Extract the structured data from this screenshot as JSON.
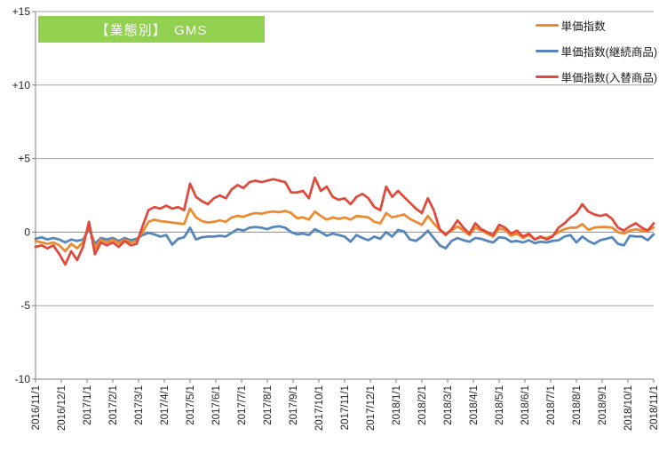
{
  "title": {
    "text": "【業態別】　GMS",
    "bg_color": "#92D050",
    "text_color": "#FFFFFF"
  },
  "colors": {
    "gridline": "#A6A6A6",
    "zero_line": "#8C8C8C",
    "axis": "#808080",
    "tick_text": "#262626"
  },
  "chart_data": {
    "type": "line",
    "title": "【業態別】　GMS",
    "x_unit": "weekly observations from 2016/11/1 to 2018/11/1",
    "legend_position": "top-right",
    "grid": true,
    "ylim": [
      -10,
      15
    ],
    "y_axis": {
      "min": -10,
      "max": 15,
      "tick_step": 5,
      "tick_labels": [
        "+15",
        "+10",
        "+5",
        "0",
        "-5",
        "-10"
      ]
    },
    "x_axis": {
      "tick_labels": [
        "2016/11/1",
        "2016/12/1",
        "2017/1/1",
        "2017/2/1",
        "2017/3/1",
        "2017/4/1",
        "2017/5/1",
        "2017/6/1",
        "2017/7/1",
        "2017/8/1",
        "2017/9/1",
        "2017/10/1",
        "2017/11/1",
        "2017/12/1",
        "2018/1/1",
        "2018/2/1",
        "2018/3/1",
        "2018/4/1",
        "2018/5/1",
        "2018/6/1",
        "2018/7/1",
        "2018/8/1",
        "2018/9/1",
        "2018/10/1",
        "2018/11/1"
      ]
    },
    "series": [
      {
        "name": "単価指数",
        "color": "#ED8A30",
        "values": [
          -0.6,
          -0.7,
          -0.8,
          -0.7,
          -0.9,
          -1.3,
          -0.8,
          -1.1,
          -0.7,
          0.5,
          -1.1,
          -0.5,
          -0.7,
          -0.5,
          -0.75,
          -0.5,
          -0.7,
          -0.6,
          0.0,
          0.7,
          0.85,
          0.75,
          0.7,
          0.65,
          0.6,
          0.55,
          1.6,
          1.0,
          0.75,
          0.65,
          0.7,
          0.8,
          0.7,
          1.0,
          1.1,
          1.05,
          1.2,
          1.3,
          1.25,
          1.35,
          1.4,
          1.35,
          1.45,
          1.3,
          0.95,
          1.0,
          0.85,
          1.4,
          1.1,
          0.85,
          1.0,
          0.9,
          1.0,
          0.85,
          1.1,
          1.05,
          1.0,
          0.7,
          0.6,
          1.3,
          1.0,
          1.1,
          1.2,
          0.9,
          0.7,
          0.5,
          1.1,
          0.6,
          0.15,
          -0.1,
          0.1,
          0.4,
          0.1,
          -0.2,
          0.3,
          0.1,
          -0.1,
          -0.3,
          0.25,
          0.15,
          -0.25,
          -0.1,
          -0.4,
          -0.2,
          -0.5,
          -0.35,
          -0.4,
          -0.25,
          0.0,
          0.2,
          0.3,
          0.3,
          0.55,
          0.15,
          0.3,
          0.35,
          0.35,
          0.3,
          0.0,
          -0.1,
          0.1,
          0.2,
          0.1,
          0.1,
          0.3
        ]
      },
      {
        "name": "単価指数(継続商品)",
        "color": "#5585BD",
        "values": [
          -0.45,
          -0.35,
          -0.5,
          -0.4,
          -0.5,
          -0.7,
          -0.5,
          -0.6,
          -0.5,
          0.25,
          -0.8,
          -0.4,
          -0.5,
          -0.4,
          -0.6,
          -0.4,
          -0.55,
          -0.45,
          -0.2,
          -0.05,
          -0.15,
          -0.3,
          -0.2,
          -0.85,
          -0.45,
          -0.35,
          0.3,
          -0.5,
          -0.35,
          -0.3,
          -0.3,
          -0.25,
          -0.3,
          -0.05,
          0.2,
          0.1,
          0.3,
          0.35,
          0.3,
          0.2,
          0.35,
          0.4,
          0.3,
          0.0,
          -0.15,
          -0.1,
          -0.2,
          0.2,
          0.0,
          -0.25,
          -0.1,
          -0.2,
          -0.3,
          -0.65,
          -0.2,
          -0.4,
          -0.55,
          -0.3,
          -0.45,
          0.0,
          -0.3,
          0.15,
          0.05,
          -0.5,
          -0.6,
          -0.3,
          0.1,
          -0.4,
          -0.9,
          -1.1,
          -0.6,
          -0.4,
          -0.55,
          -0.65,
          -0.4,
          -0.45,
          -0.6,
          -0.7,
          -0.35,
          -0.4,
          -0.65,
          -0.6,
          -0.7,
          -0.55,
          -0.75,
          -0.65,
          -0.7,
          -0.6,
          -0.55,
          -0.3,
          -0.2,
          -0.7,
          -0.3,
          -0.6,
          -0.8,
          -0.55,
          -0.45,
          -0.35,
          -0.8,
          -0.9,
          -0.25,
          -0.3,
          -0.3,
          -0.55,
          -0.15
        ]
      },
      {
        "name": "単価指数(入替商品)",
        "color": "#E04A3C",
        "values": [
          -1.0,
          -0.9,
          -1.1,
          -0.9,
          -1.5,
          -2.2,
          -1.3,
          -1.9,
          -1.0,
          0.7,
          -1.5,
          -0.7,
          -0.9,
          -0.7,
          -1.0,
          -0.6,
          -0.9,
          -0.8,
          0.4,
          1.5,
          1.7,
          1.6,
          1.8,
          1.6,
          1.7,
          1.5,
          3.3,
          2.4,
          2.1,
          1.9,
          2.3,
          2.5,
          2.3,
          2.9,
          3.2,
          3.0,
          3.4,
          3.5,
          3.4,
          3.5,
          3.6,
          3.5,
          3.4,
          2.7,
          2.7,
          2.8,
          2.3,
          3.7,
          2.8,
          3.1,
          2.4,
          2.2,
          2.3,
          1.9,
          2.4,
          2.6,
          2.3,
          1.7,
          1.5,
          3.1,
          2.4,
          2.8,
          2.4,
          2.0,
          1.6,
          1.3,
          2.3,
          1.5,
          0.2,
          -0.2,
          0.2,
          0.8,
          0.3,
          -0.1,
          0.6,
          0.2,
          0.0,
          -0.2,
          0.5,
          0.3,
          -0.1,
          0.1,
          -0.3,
          -0.1,
          -0.5,
          -0.3,
          -0.5,
          -0.3,
          0.3,
          0.6,
          1.0,
          1.3,
          1.9,
          1.4,
          1.2,
          1.1,
          1.2,
          0.9,
          0.3,
          0.1,
          0.4,
          0.6,
          0.3,
          0.1,
          0.6
        ]
      }
    ]
  }
}
